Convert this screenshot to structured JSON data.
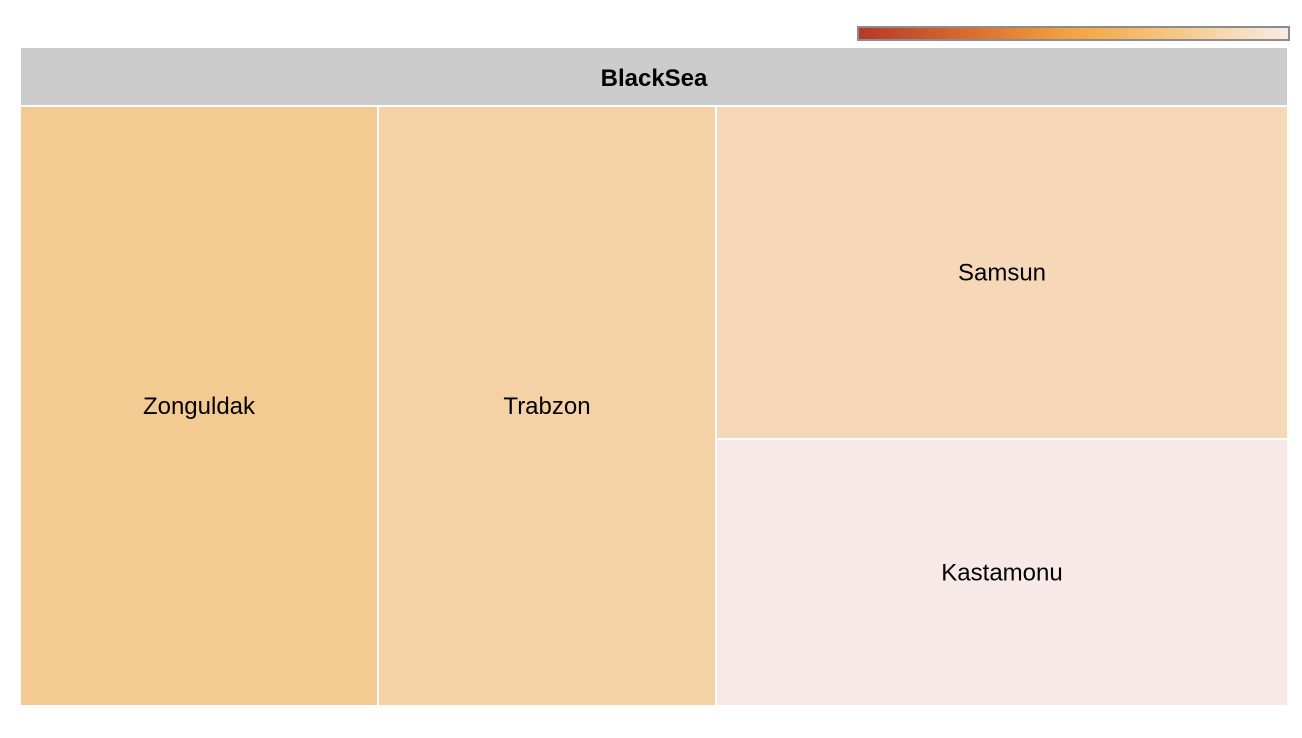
{
  "chart_data": {
    "type": "treemap",
    "root": "BlackSea",
    "header_color": "#cccccc",
    "color_scale": {
      "stops": [
        "#b5382a",
        "#d96a2e",
        "#f3a541",
        "#f6c98a",
        "#f8ece6"
      ],
      "legend": "gradient"
    },
    "nodes": [
      {
        "name": "Zonguldak",
        "color": "#f3cb92"
      },
      {
        "name": "Trabzon",
        "color": "#f4d2a6"
      },
      {
        "name": "Samsun",
        "color": "#f6d7b8"
      },
      {
        "name": "Kastamonu",
        "color": "#f7e9e7"
      }
    ]
  }
}
